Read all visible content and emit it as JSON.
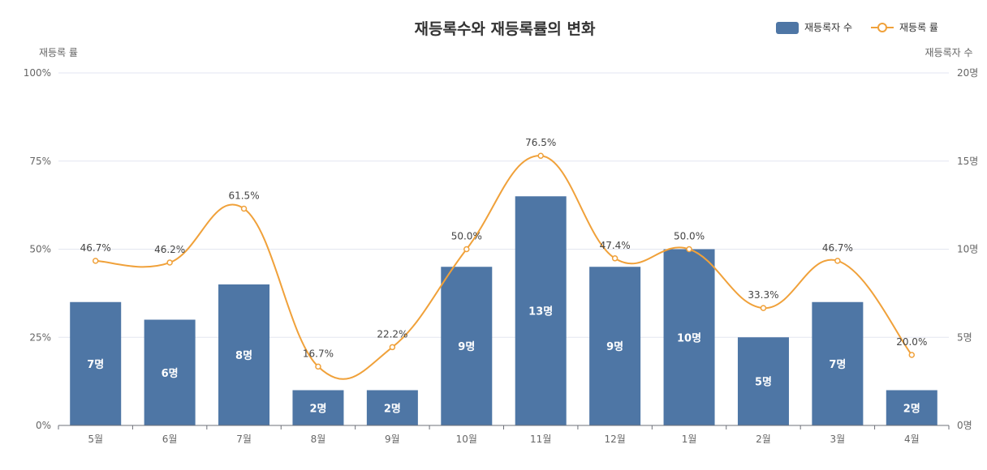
{
  "chart_data": {
    "type": "bar",
    "title": "재등록수와 재등록률의 변화",
    "categories": [
      "5월",
      "6월",
      "7월",
      "8월",
      "9월",
      "10월",
      "11월",
      "12월",
      "1월",
      "2월",
      "3월",
      "4월"
    ],
    "y_left": {
      "name": "재등록 률",
      "ticks": [
        "0%",
        "25%",
        "50%",
        "75%",
        "100%"
      ],
      "range": [
        0,
        100
      ]
    },
    "y_right": {
      "name": "재등록자 수",
      "ticks": [
        "0명",
        "5명",
        "10명",
        "15명",
        "20명"
      ],
      "range": [
        0,
        20
      ]
    },
    "series": [
      {
        "name": "재등록자 수",
        "kind": "bar",
        "axis": "right",
        "values": [
          7,
          6,
          8,
          2,
          2,
          9,
          13,
          9,
          10,
          5,
          7,
          2
        ],
        "labels": [
          "7명",
          "6명",
          "8명",
          "2명",
          "2명",
          "9명",
          "13명",
          "9명",
          "10명",
          "5명",
          "7명",
          "2명"
        ],
        "color": "#4e76a5"
      },
      {
        "name": "재등록 률",
        "kind": "line",
        "axis": "left",
        "smooth": true,
        "values": [
          46.7,
          46.2,
          61.5,
          16.7,
          22.2,
          50.0,
          76.5,
          47.4,
          50.0,
          33.3,
          46.7,
          20.0
        ],
        "labels": [
          "46.7%",
          "46.2%",
          "61.5%",
          "16.7%",
          "22.2%",
          "50.0%",
          "76.5%",
          "47.4%",
          "50.0%",
          "33.3%",
          "46.7%",
          "20.0%"
        ],
        "color": "#f0a13a"
      }
    ],
    "legend": "top-right",
    "grid": true
  }
}
